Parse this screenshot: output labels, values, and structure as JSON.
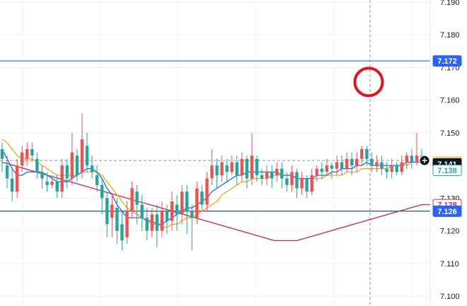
{
  "chart_data": {
    "type": "candlestick",
    "title": "",
    "xlabel": "",
    "ylabel": "",
    "ylim": [
      7.1,
      7.19
    ],
    "y_ticks": [
      "7.190",
      "7.180",
      "7.170",
      "7.160",
      "7.150",
      "7.140",
      "7.130",
      "7.120",
      "7.110",
      "7.100"
    ],
    "grid": "on",
    "colors": {
      "up": "#ef5350",
      "down": "#26a69a",
      "ma_fast": "#2962ff",
      "ma_mid": "#f7a21b",
      "ma_slow": "#b2386e",
      "level_line": "#2962ff",
      "support_line": "#0b3a6e",
      "crosshair": "#787b86",
      "marker": "#e3151a"
    },
    "candles": [
      [
        7.145,
        7.142,
        7.147,
        7.138
      ],
      [
        7.14,
        7.136,
        7.143,
        7.133
      ],
      [
        7.136,
        7.132,
        7.139,
        7.129
      ],
      [
        7.132,
        7.14,
        7.142,
        7.13
      ],
      [
        7.14,
        7.144,
        7.146,
        7.138
      ],
      [
        7.142,
        7.145,
        7.147,
        7.14
      ],
      [
        7.145,
        7.143,
        7.147,
        7.141
      ],
      [
        7.142,
        7.138,
        7.144,
        7.136
      ],
      [
        7.138,
        7.136,
        7.14,
        7.133
      ],
      [
        7.135,
        7.134,
        7.138,
        7.132
      ],
      [
        7.134,
        7.135,
        7.137,
        7.133
      ],
      [
        7.135,
        7.132,
        7.137,
        7.13
      ],
      [
        7.132,
        7.14,
        7.142,
        7.13
      ],
      [
        7.14,
        7.136,
        7.142,
        7.133
      ],
      [
        7.136,
        7.144,
        7.15,
        7.134
      ],
      [
        7.143,
        7.137,
        7.145,
        7.135
      ],
      [
        7.138,
        7.148,
        7.156,
        7.136
      ],
      [
        7.146,
        7.14,
        7.15,
        7.138
      ],
      [
        7.14,
        7.138,
        7.143,
        7.136
      ],
      [
        7.137,
        7.134,
        7.14,
        7.132
      ],
      [
        7.134,
        7.13,
        7.136,
        7.125
      ],
      [
        7.13,
        7.122,
        7.132,
        7.118
      ],
      [
        7.124,
        7.128,
        7.131,
        7.118
      ],
      [
        7.127,
        7.12,
        7.13,
        7.116
      ],
      [
        7.122,
        7.117,
        7.126,
        7.114
      ],
      [
        7.118,
        7.126,
        7.129,
        7.116
      ],
      [
        7.126,
        7.133,
        7.135,
        7.124
      ],
      [
        7.132,
        7.128,
        7.134,
        7.122
      ],
      [
        7.128,
        7.124,
        7.131,
        7.12
      ],
      [
        7.124,
        7.12,
        7.127,
        7.117
      ],
      [
        7.12,
        7.125,
        7.127,
        7.118
      ],
      [
        7.125,
        7.12,
        7.128,
        7.115
      ],
      [
        7.12,
        7.126,
        7.129,
        7.118
      ],
      [
        7.126,
        7.123,
        7.128,
        7.119
      ],
      [
        7.123,
        7.129,
        7.132,
        7.12
      ],
      [
        7.128,
        7.125,
        7.131,
        7.12
      ],
      [
        7.125,
        7.132,
        7.134,
        7.122
      ],
      [
        7.132,
        7.126,
        7.134,
        7.119
      ],
      [
        7.126,
        7.124,
        7.128,
        7.114
      ],
      [
        7.124,
        7.133,
        7.135,
        7.122
      ],
      [
        7.132,
        7.128,
        7.134,
        7.126
      ],
      [
        7.128,
        7.136,
        7.138,
        7.126
      ],
      [
        7.136,
        7.14,
        7.145,
        7.134
      ],
      [
        7.14,
        7.137,
        7.142,
        7.133
      ],
      [
        7.137,
        7.141,
        7.143,
        7.135
      ],
      [
        7.14,
        7.138,
        7.142,
        7.135
      ],
      [
        7.138,
        7.141,
        7.143,
        7.137
      ],
      [
        7.141,
        7.137,
        7.143,
        7.134
      ],
      [
        7.137,
        7.142,
        7.144,
        7.135
      ],
      [
        7.142,
        7.136,
        7.143,
        7.133
      ],
      [
        7.136,
        7.143,
        7.15,
        7.134
      ],
      [
        7.142,
        7.137,
        7.143,
        7.135
      ],
      [
        7.137,
        7.136,
        7.139,
        7.134
      ],
      [
        7.136,
        7.138,
        7.14,
        7.134
      ],
      [
        7.138,
        7.136,
        7.14,
        7.133
      ],
      [
        7.137,
        7.139,
        7.141,
        7.135
      ],
      [
        7.139,
        7.136,
        7.141,
        7.133
      ],
      [
        7.136,
        7.134,
        7.138,
        7.132
      ],
      [
        7.134,
        7.138,
        7.14,
        7.132
      ],
      [
        7.138,
        7.133,
        7.139,
        7.13
      ],
      [
        7.133,
        7.136,
        7.138,
        7.131
      ],
      [
        7.136,
        7.132,
        7.137,
        7.13
      ],
      [
        7.132,
        7.137,
        7.139,
        7.131
      ],
      [
        7.137,
        7.139,
        7.14,
        7.135
      ],
      [
        7.139,
        7.138,
        7.141,
        7.136
      ],
      [
        7.138,
        7.14,
        7.142,
        7.137
      ],
      [
        7.14,
        7.139,
        7.141,
        7.136
      ],
      [
        7.139,
        7.141,
        7.143,
        7.137
      ],
      [
        7.141,
        7.139,
        7.143,
        7.137
      ],
      [
        7.139,
        7.142,
        7.144,
        7.138
      ],
      [
        7.142,
        7.14,
        7.144,
        7.137
      ],
      [
        7.14,
        7.142,
        7.144,
        7.138
      ],
      [
        7.142,
        7.145,
        7.146,
        7.14
      ],
      [
        7.145,
        7.142,
        7.146,
        7.14
      ],
      [
        7.142,
        7.14,
        7.144,
        7.138
      ],
      [
        7.14,
        7.141,
        7.143,
        7.138
      ],
      [
        7.141,
        7.139,
        7.143,
        7.137
      ],
      [
        7.139,
        7.138,
        7.141,
        7.136
      ],
      [
        7.138,
        7.14,
        7.142,
        7.136
      ],
      [
        7.14,
        7.138,
        7.141,
        7.137
      ],
      [
        7.138,
        7.141,
        7.143,
        7.137
      ],
      [
        7.141,
        7.143,
        7.144,
        7.139
      ],
      [
        7.143,
        7.141,
        7.145,
        7.139
      ],
      [
        7.141,
        7.143,
        7.15,
        7.14
      ],
      [
        7.143,
        7.141,
        7.145,
        7.14
      ]
    ],
    "ma_fast": [
      7.145,
      7.142,
      7.139,
      7.137,
      7.137,
      7.138,
      7.138,
      7.138,
      7.138,
      7.137,
      7.136,
      7.135,
      7.135,
      7.135,
      7.136,
      7.137,
      7.138,
      7.139,
      7.139,
      7.138,
      7.136,
      7.133,
      7.131,
      7.128,
      7.126,
      7.124,
      7.124,
      7.124,
      7.124,
      7.123,
      7.123,
      7.122,
      7.122,
      7.123,
      7.124,
      7.125,
      7.126,
      7.127,
      7.127,
      7.128,
      7.129,
      7.13,
      7.132,
      7.133,
      7.134,
      7.135,
      7.136,
      7.137,
      7.137,
      7.138,
      7.138,
      7.138,
      7.138,
      7.138,
      7.138,
      7.138,
      7.137,
      7.137,
      7.137,
      7.136,
      7.136,
      7.136,
      7.136,
      7.137,
      7.137,
      7.137,
      7.138,
      7.138,
      7.139,
      7.139,
      7.139,
      7.14,
      7.14,
      7.141,
      7.14,
      7.14,
      7.14,
      7.14,
      7.14,
      7.14,
      7.14,
      7.141,
      7.141,
      7.141,
      7.141
    ],
    "ma_mid": [
      7.148,
      7.147,
      7.145,
      7.143,
      7.142,
      7.142,
      7.142,
      7.141,
      7.14,
      7.139,
      7.138,
      7.137,
      7.137,
      7.137,
      7.137,
      7.137,
      7.138,
      7.138,
      7.138,
      7.138,
      7.137,
      7.135,
      7.133,
      7.131,
      7.129,
      7.127,
      7.126,
      7.125,
      7.124,
      7.123,
      7.122,
      7.122,
      7.121,
      7.121,
      7.122,
      7.122,
      7.123,
      7.124,
      7.124,
      7.125,
      7.126,
      7.127,
      7.128,
      7.129,
      7.131,
      7.132,
      7.133,
      7.134,
      7.135,
      7.135,
      7.136,
      7.136,
      7.136,
      7.136,
      7.137,
      7.137,
      7.137,
      7.137,
      7.137,
      7.136,
      7.136,
      7.136,
      7.136,
      7.136,
      7.136,
      7.137,
      7.137,
      7.137,
      7.137,
      7.138,
      7.138,
      7.138,
      7.139,
      7.139,
      7.139,
      7.139,
      7.139,
      7.139,
      7.14,
      7.14,
      7.14,
      7.14,
      7.141,
      7.141,
      7.141
    ],
    "ma_slow": [
      7.141,
      7.14,
      7.139,
      7.138,
      7.137,
      7.136,
      7.135,
      7.134,
      7.133,
      7.132,
      7.131,
      7.13,
      7.129,
      7.128,
      7.127,
      7.126,
      7.125,
      7.124,
      7.123,
      7.122,
      7.121,
      7.12,
      7.119,
      7.118,
      7.117,
      7.117,
      7.117,
      7.118,
      7.119,
      7.12,
      7.121,
      7.122,
      7.123,
      7.124,
      7.125,
      7.126,
      7.127,
      7.128
    ],
    "horizontal_levels": [
      {
        "value": "7.172",
        "color": "#2962ff"
      },
      {
        "value": "7.126",
        "color": "#0b3a6e"
      }
    ],
    "price_badges": [
      {
        "label": "7.172",
        "value": 7.172,
        "style": "filled",
        "color": "#2962ff"
      },
      {
        "label": "7.141",
        "value": 7.141,
        "style": "outline",
        "color": "#f7a21b"
      },
      {
        "label": "7.141",
        "value": 7.1405,
        "style": "filled",
        "color": "#131722"
      },
      {
        "label": "7.138",
        "value": 7.1385,
        "style": "outline",
        "color": "#26a69a"
      },
      {
        "label": "7.128",
        "value": 7.128,
        "style": "outline",
        "color": "#b2386e"
      },
      {
        "label": "7.126",
        "value": 7.126,
        "style": "filled",
        "color": "#2962ff"
      }
    ],
    "last_price": 7.1415
  }
}
